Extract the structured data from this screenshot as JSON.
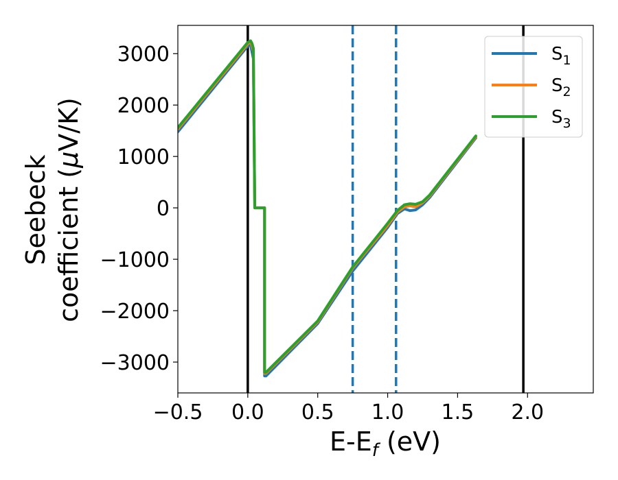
{
  "chart_data": {
    "type": "line",
    "xlabel": "E-E",
    "xlabel_sub": "f",
    "xlabel_unit": " (eV)",
    "ylabel_line1": "Seebeck",
    "ylabel_line2": "coefficient  (",
    "ylabel_mu": "μ",
    "ylabel_unit_tail": "V/K)",
    "xlim": [
      -0.5,
      2.47
    ],
    "ylim": [
      -3600,
      3550
    ],
    "x_ticks": [
      -0.5,
      0.0,
      0.5,
      1.0,
      1.5,
      2.0
    ],
    "x_tick_labels": [
      "−0.5",
      "0.0",
      "0.5",
      "1.0",
      "1.5",
      "2.0"
    ],
    "y_ticks": [
      3000,
      2000,
      1000,
      0,
      -1000,
      -2000,
      -3000
    ],
    "y_tick_labels": [
      "3000",
      "2000",
      "1000",
      "0",
      "−1000",
      "−2000",
      "−3000"
    ],
    "grid": false,
    "legend_position": "top-right",
    "legend": [
      {
        "base": "S",
        "sub": "1",
        "color": "#1f77b4"
      },
      {
        "base": "S",
        "sub": "2",
        "color": "#ff7f0e"
      },
      {
        "base": "S",
        "sub": "3",
        "color": "#2ca02c"
      }
    ],
    "series": [
      {
        "name": "S1",
        "color": "#1f77b4",
        "x": [
          -0.5,
          0.0,
          0.02,
          0.04,
          0.05,
          0.06,
          0.12,
          0.12,
          0.13,
          0.5,
          0.75,
          1.0,
          1.07,
          1.12,
          1.16,
          1.2,
          1.25,
          1.3,
          1.63
        ],
        "y": [
          1480,
          3150,
          3170,
          2900,
          0,
          0,
          0,
          -3270,
          -3270,
          -2250,
          -1230,
          -380,
          -110,
          -20,
          -55,
          -40,
          60,
          200,
          1360
        ]
      },
      {
        "name": "S2",
        "color": "#ff7f0e",
        "x": [
          -0.5,
          0.0,
          0.02,
          0.04,
          0.05,
          0.06,
          0.12,
          0.12,
          0.13,
          0.5,
          0.75,
          1.0,
          1.07,
          1.12,
          1.16,
          1.2,
          1.25,
          1.3,
          1.63
        ],
        "y": [
          1530,
          3190,
          3240,
          3050,
          0,
          0,
          0,
          -3220,
          -3220,
          -2220,
          -1170,
          -340,
          -80,
          20,
          40,
          20,
          100,
          230,
          1380
        ]
      },
      {
        "name": "S3",
        "color": "#2ca02c",
        "x": [
          -0.5,
          0.0,
          0.02,
          0.03,
          0.04,
          0.05,
          0.06,
          0.12,
          0.12,
          0.13,
          0.5,
          0.75,
          1.0,
          1.07,
          1.12,
          1.16,
          1.2,
          1.25,
          1.3,
          1.63
        ],
        "y": [
          1560,
          3220,
          3250,
          3200,
          3100,
          0,
          0,
          0,
          -3200,
          -3200,
          -2200,
          -1150,
          -300,
          -50,
          60,
          80,
          70,
          120,
          250,
          1400
        ]
      }
    ],
    "vertical_lines": [
      {
        "x": 0.0,
        "style": "solid",
        "color": "#000000"
      },
      {
        "x": 1.97,
        "style": "solid",
        "color": "#000000"
      },
      {
        "x": 0.75,
        "style": "dashed",
        "color": "#1f77b4"
      },
      {
        "x": 1.06,
        "style": "dashed",
        "color": "#1f77b4"
      }
    ]
  }
}
